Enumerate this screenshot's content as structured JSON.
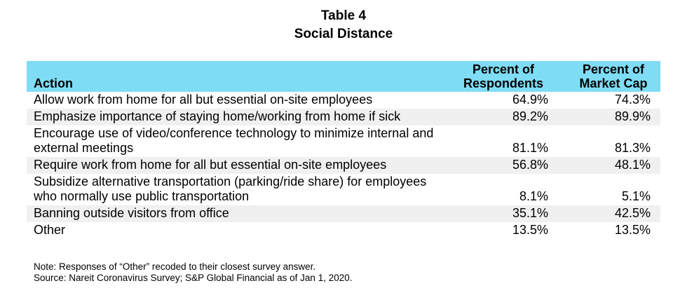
{
  "title": "Table 4",
  "subtitle": "Social Distance",
  "headers": {
    "action": "Action",
    "respondents_line1": "Percent of",
    "respondents_line2": "Respondents",
    "market_cap_line1": "Percent of",
    "market_cap_line2": "Market Cap"
  },
  "rows": [
    {
      "action": "Allow work from home for all but essential on-site employees",
      "respondents": "64.9%",
      "market_cap": "74.3%"
    },
    {
      "action": "Emphasize importance of staying home/working from home if sick",
      "respondents": "89.2%",
      "market_cap": "89.9%"
    },
    {
      "action": "Encourage use of video/conference technology to minimize internal and external meetings",
      "respondents": "81.1%",
      "market_cap": "81.3%"
    },
    {
      "action": "Require work from home for all but essential on-site employees",
      "respondents": "56.8%",
      "market_cap": "48.1%"
    },
    {
      "action": "Subsidize alternative transportation (parking/ride share) for employees who normally use public transportation",
      "respondents": "8.1%",
      "market_cap": "5.1%"
    },
    {
      "action": "Banning outside visitors from office",
      "respondents": "35.1%",
      "market_cap": "42.5%"
    },
    {
      "action": "Other",
      "respondents": "13.5%",
      "market_cap": "13.5%"
    }
  ],
  "note": "Note: Responses of “Other” recoded to their closest survey answer.",
  "source": "Source: Nareit Coronavirus Survey; S&P Global Financial as of Jan 1, 2020.",
  "colors": {
    "header_bg": "#7fdcf5",
    "stripe_bg": "#f0f0f0"
  }
}
